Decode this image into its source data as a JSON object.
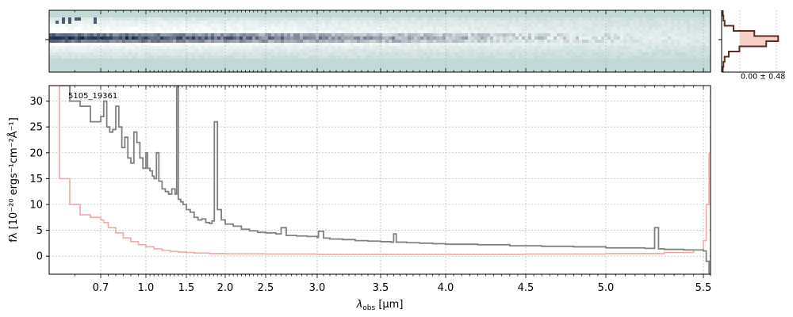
{
  "figure": {
    "object_label": "5105_19361",
    "profile_label": "0.00 ± 0.48"
  },
  "colors": {
    "spectrum": "#808080",
    "error": "#f4a7a7",
    "profile_line": "#5a2d22",
    "profile_fill": "#f6cfc6",
    "image_background": "#c3d9d7",
    "image_dark": "#0d1c3c"
  },
  "chart_data": [
    {
      "type": "heatmap",
      "description_role": "2D spectrum",
      "x_scale": "reciprocal-like wavelength axis",
      "xlim": [
        0.6,
        5.55
      ],
      "y_center_tick": 0,
      "grid": true
    },
    {
      "type": "line",
      "title": "",
      "xlabel": "λobs [µm]",
      "xlabel_main": "λ",
      "xlabel_sub": "obs",
      "xlabel_unit": " [µm]",
      "ylabel": "fλ [10⁻²⁰ ergs⁻¹cm⁻²Å⁻¹]",
      "xlim": [
        0.6,
        5.55
      ],
      "ylim": [
        -3.5,
        33
      ],
      "x_ticks": [
        {
          "value": 0.7,
          "label": "0.7"
        },
        {
          "value": 1.0,
          "label": "1.0"
        },
        {
          "value": 1.5,
          "label": "1.5"
        },
        {
          "value": 2.0,
          "label": "2.0"
        },
        {
          "value": 2.5,
          "label": "2.5"
        },
        {
          "value": 3.0,
          "label": "3.0"
        },
        {
          "value": 3.5,
          "label": "3.5"
        },
        {
          "value": 4.0,
          "label": "4.0"
        },
        {
          "value": 4.5,
          "label": "4.5"
        },
        {
          "value": 5.0,
          "label": "5.0"
        },
        {
          "value": 5.5,
          "label": "5.5"
        }
      ],
      "y_ticks": [
        {
          "value": 0,
          "label": "0"
        },
        {
          "value": 5,
          "label": "5"
        },
        {
          "value": 10,
          "label": "10"
        },
        {
          "value": 15,
          "label": "15"
        },
        {
          "value": 20,
          "label": "20"
        },
        {
          "value": 25,
          "label": "25"
        },
        {
          "value": 30,
          "label": "30"
        }
      ],
      "grid": true,
      "series": [
        {
          "role": "flux",
          "style": "step",
          "x": [
            0.62,
            0.64,
            0.66,
            0.68,
            0.7,
            0.72,
            0.74,
            0.76,
            0.78,
            0.8,
            0.82,
            0.84,
            0.86,
            0.88,
            0.9,
            0.92,
            0.94,
            0.96,
            0.98,
            1.0,
            1.02,
            1.05,
            1.08,
            1.1,
            1.13,
            1.16,
            1.2,
            1.24,
            1.28,
            1.32,
            1.36,
            1.38,
            1.4,
            1.43,
            1.46,
            1.5,
            1.55,
            1.6,
            1.65,
            1.7,
            1.75,
            1.8,
            1.83,
            1.86,
            1.9,
            1.95,
            2.0,
            2.1,
            2.2,
            2.3,
            2.4,
            2.5,
            2.6,
            2.65,
            2.7,
            2.8,
            2.9,
            3.0,
            3.01,
            3.05,
            3.1,
            3.2,
            3.3,
            3.4,
            3.5,
            3.58,
            3.6,
            3.62,
            3.7,
            3.8,
            3.9,
            4.0,
            4.2,
            4.4,
            4.6,
            4.8,
            5.0,
            5.2,
            5.25,
            5.27,
            5.3,
            5.4,
            5.5,
            5.52,
            5.54
          ],
          "y": [
            33,
            30,
            29,
            26,
            27,
            30,
            25,
            24,
            24.5,
            29,
            25,
            21,
            23,
            19,
            18,
            24,
            22,
            19,
            17,
            20,
            17,
            16.5,
            15.5,
            15,
            20,
            14.5,
            13,
            12.5,
            12,
            13,
            12,
            40,
            11,
            10.5,
            10,
            9,
            8.5,
            7.5,
            7,
            7.2,
            6.5,
            6.3,
            6.8,
            26,
            9,
            7,
            6.2,
            5.8,
            5.2,
            4.9,
            4.6,
            4.5,
            4.3,
            5.5,
            4.0,
            3.9,
            3.8,
            3.6,
            4.8,
            3.5,
            3.3,
            3.2,
            3.0,
            2.9,
            2.8,
            2.7,
            4.3,
            2.7,
            2.6,
            2.5,
            2.4,
            2.3,
            2.2,
            2.0,
            1.9,
            1.8,
            1.6,
            1.5,
            5.5,
            1.4,
            1.3,
            1.2,
            1.0,
            -1.0,
            -3.5
          ]
        },
        {
          "role": "error",
          "style": "step",
          "x": [
            0.6,
            0.62,
            0.64,
            0.66,
            0.68,
            0.7,
            0.72,
            0.75,
            0.8,
            0.85,
            0.9,
            0.95,
            1.0,
            1.1,
            1.2,
            1.3,
            1.4,
            1.5,
            1.6,
            1.8,
            2.0,
            2.5,
            3.0,
            3.5,
            4.0,
            4.5,
            5.0,
            5.3,
            5.45,
            5.5,
            5.52,
            5.54
          ],
          "y": [
            33,
            15,
            10,
            8,
            7.5,
            7,
            6.5,
            5.5,
            4.5,
            3.5,
            2.8,
            2.2,
            1.8,
            1.4,
            1.1,
            0.9,
            0.8,
            0.7,
            0.6,
            0.5,
            0.45,
            0.4,
            0.35,
            0.35,
            0.35,
            0.4,
            0.5,
            0.7,
            1.2,
            3.0,
            10,
            20
          ]
        }
      ]
    },
    {
      "type": "line",
      "description_role": "spatial profile",
      "profile_bins": [
        0.02,
        0.03,
        0.05,
        0.2,
        0.55,
        0.95,
        0.75,
        0.3,
        0.12,
        0.05,
        0.03,
        0.02
      ]
    }
  ]
}
